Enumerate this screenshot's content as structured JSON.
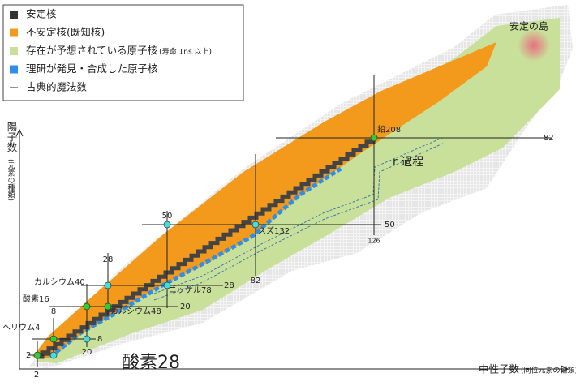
{
  "legend": [
    {
      "label": "安定核",
      "color": "#333333"
    },
    {
      "label": "不安定核(既知核)",
      "color": "#f39a1c"
    },
    {
      "label": "存在が予想されている原子核",
      "note": "(寿命 1ns 以上)",
      "color": "#c9e09a"
    },
    {
      "label": "理研が発見・合成した原子核",
      "color": "#2f8fe8"
    },
    {
      "label": "古典的魔法数",
      "color": "#222222"
    }
  ],
  "axes": {
    "x_label": "中性子数",
    "x_note": "(同位元素の種類)",
    "y_label": "陽子数",
    "y_note": "(元素の種類)"
  },
  "annotations": {
    "island": "安定の島",
    "r_process": "r 過程",
    "lead208": "鉛208",
    "tin132": "スズ132",
    "nickel78": "ニッケル78",
    "calcium48": "カルシウム48",
    "calcium40": "カルシウム40",
    "oxygen16": "酸素16",
    "helium4": "ヘリウム4",
    "oxygen28": "酸素28"
  },
  "magic_labels": [
    "82",
    "50",
    "28",
    "20",
    "8",
    "2",
    "2",
    "8",
    "20",
    "28",
    "50",
    "82",
    "126"
  ]
}
